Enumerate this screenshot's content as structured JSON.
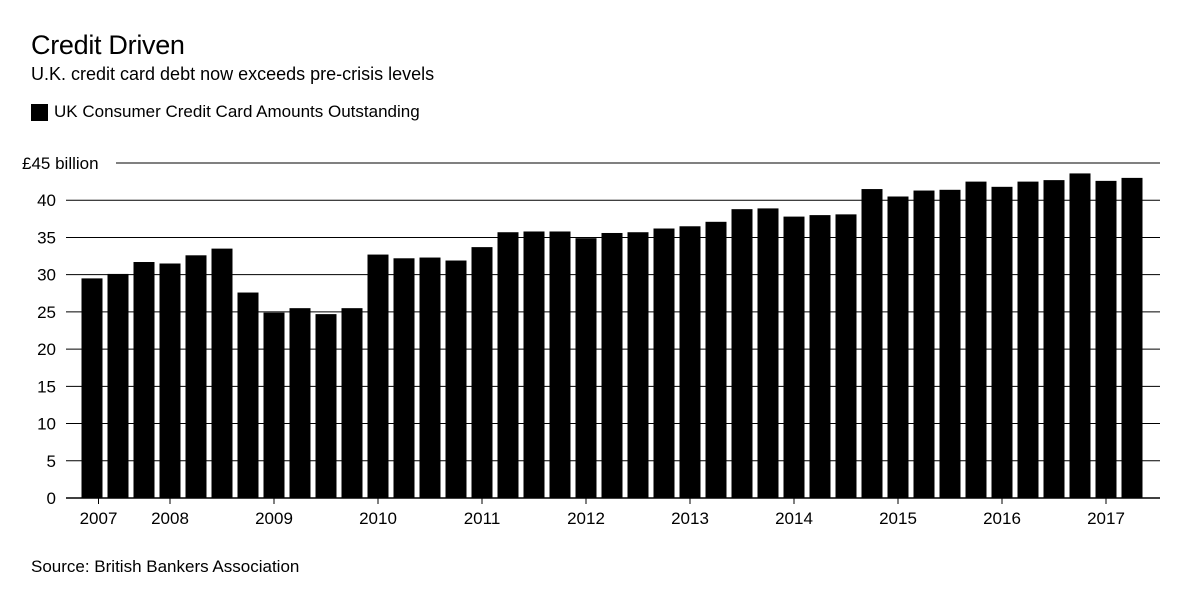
{
  "header": {
    "title": "Credit Driven",
    "subtitle": "U.K. credit card debt now exceeds pre-crisis levels"
  },
  "legend": {
    "label": "UK Consumer Credit Card Amounts Outstanding"
  },
  "footer": {
    "source": "Source: British Bankers Association"
  },
  "colors": {
    "bar": "#000000",
    "grid": "#000000",
    "background": "#ffffff"
  },
  "chart_data": {
    "type": "bar",
    "title": "Credit Driven",
    "subtitle": "U.K. credit card debt now exceeds pre-crisis levels",
    "xlabel": "",
    "ylabel": "£45 billion",
    "ylim": [
      0,
      45
    ],
    "yticks": [
      0,
      5,
      10,
      15,
      20,
      25,
      30,
      35,
      40,
      45
    ],
    "ytick_labels": [
      "0",
      "5",
      "10",
      "15",
      "20",
      "25",
      "30",
      "35",
      "40",
      "£45 billion"
    ],
    "xtick_labels": [
      "2007",
      "2008",
      "2009",
      "2010",
      "2011",
      "2012",
      "2013",
      "2014",
      "2015",
      "2016",
      "2017"
    ],
    "xtick_positions": [
      0.25,
      3,
      7,
      11,
      15,
      19,
      23,
      27,
      31,
      35,
      39
    ],
    "grid": true,
    "legend": [
      "UK Consumer Credit Card Amounts Outstanding"
    ],
    "series": [
      {
        "name": "UK Consumer Credit Card Amounts Outstanding",
        "values": [
          29.5,
          30.1,
          31.7,
          31.5,
          32.6,
          33.5,
          27.6,
          24.9,
          25.5,
          24.7,
          25.5,
          32.7,
          32.2,
          32.3,
          31.9,
          33.7,
          35.7,
          35.8,
          35.8,
          34.9,
          35.6,
          35.7,
          36.2,
          36.5,
          37.1,
          38.8,
          38.9,
          37.8,
          38.0,
          38.1,
          41.5,
          40.5,
          41.3,
          41.4,
          42.5,
          41.8,
          42.5,
          42.7,
          43.6,
          42.6,
          43.0
        ]
      }
    ]
  }
}
